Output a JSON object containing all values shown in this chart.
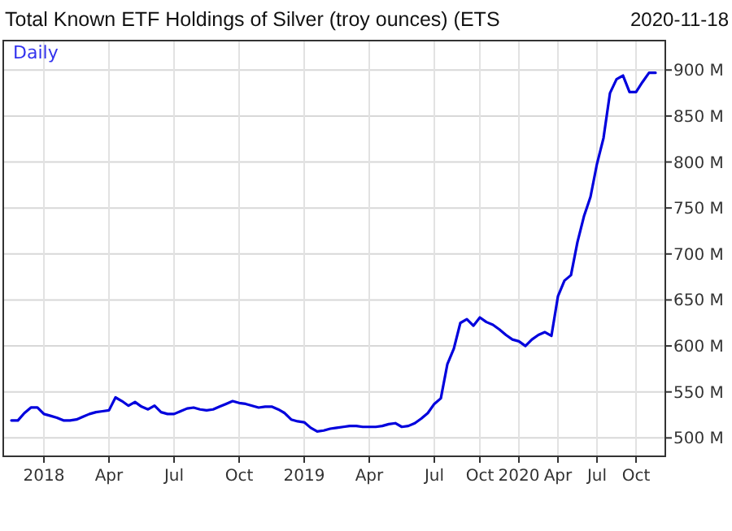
{
  "chart_data": {
    "type": "line",
    "title": "Total Known ETF Holdings of Silver (troy ounces) (ETS",
    "subtitle": "2020-11-18",
    "annotations": [
      "Daily"
    ],
    "categories": [
      null,
      null,
      null,
      null,
      null,
      "2018",
      null,
      null,
      null,
      null,
      null,
      null,
      null,
      null,
      null,
      "Apr",
      null,
      null,
      null,
      null,
      null,
      null,
      null,
      null,
      null,
      "Jul",
      null,
      null,
      null,
      null,
      null,
      null,
      null,
      null,
      null,
      "Oct",
      null,
      null,
      null,
      null,
      null,
      null,
      null,
      null,
      null,
      "2019",
      null,
      null,
      null,
      null,
      null,
      null,
      null,
      null,
      null,
      "Apr",
      null,
      null,
      null,
      null,
      null,
      null,
      null,
      null,
      null,
      "Jul",
      null,
      null,
      null,
      null,
      null,
      null,
      "Oct",
      null,
      null,
      null,
      null,
      null,
      "2020",
      null,
      null,
      null,
      null,
      null,
      "Apr",
      null,
      null,
      null,
      null,
      null,
      "Jul",
      null,
      null,
      null,
      null,
      null,
      "Oct",
      null,
      null,
      null
    ],
    "series": [
      {
        "color": "#0000dd",
        "values": [
          519,
          519,
          527,
          533,
          533,
          526,
          524,
          522,
          519,
          519,
          520,
          523,
          526,
          528,
          529,
          530,
          544,
          540,
          535,
          539,
          534,
          531,
          535,
          528,
          526,
          526,
          529,
          532,
          533,
          531,
          530,
          531,
          534,
          537,
          540,
          538,
          537,
          535,
          533,
          534,
          534,
          531,
          527,
          520,
          518,
          517,
          511,
          507,
          508,
          510,
          511,
          512,
          513,
          513,
          512,
          512,
          512,
          513,
          515,
          516,
          512,
          513,
          516,
          521,
          527,
          537,
          543,
          580,
          597,
          625,
          629,
          622,
          631,
          626,
          623,
          618,
          612,
          607,
          605,
          600,
          607,
          612,
          615,
          611,
          654,
          671,
          677,
          713,
          741,
          762,
          798,
          826,
          875,
          890,
          894,
          876,
          876,
          887,
          897,
          897
        ]
      }
    ],
    "ylim": [
      480,
      932
    ],
    "yticks": [
      {
        "value": 500,
        "label": "500 M"
      },
      {
        "value": 550,
        "label": "550 M"
      },
      {
        "value": 600,
        "label": "600 M"
      },
      {
        "value": 650,
        "label": "650 M"
      },
      {
        "value": 700,
        "label": "700 M"
      },
      {
        "value": 750,
        "label": "750 M"
      },
      {
        "value": 800,
        "label": "800 M"
      },
      {
        "value": 850,
        "label": "850 M"
      },
      {
        "value": 900,
        "label": "900 M"
      }
    ],
    "grid": true,
    "marker": "none",
    "line_style": "solid"
  }
}
